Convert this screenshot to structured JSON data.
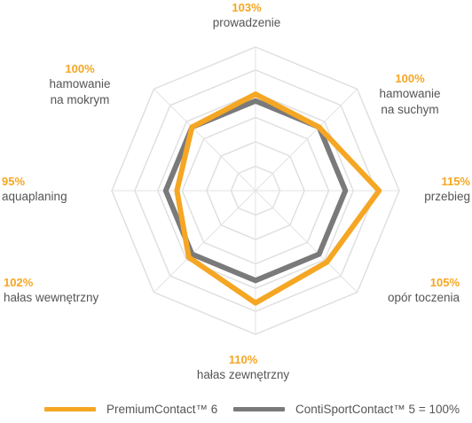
{
  "chart_data": {
    "type": "radar",
    "axes": [
      {
        "value_label": "103%",
        "label_lines": [
          "prowadzenie"
        ]
      },
      {
        "value_label": "100%",
        "label_lines": [
          "hamowanie",
          "na suchym"
        ]
      },
      {
        "value_label": "115%",
        "label_lines": [
          "przebieg"
        ]
      },
      {
        "value_label": "105%",
        "label_lines": [
          "opór toczenia"
        ]
      },
      {
        "value_label": "110%",
        "label_lines": [
          "hałas zewnętrzny"
        ]
      },
      {
        "value_label": "102%",
        "label_lines": [
          "hałas wewnętrzny"
        ]
      },
      {
        "value_label": "95%",
        "label_lines": [
          "aquaplaning"
        ]
      },
      {
        "value_label": "100%",
        "label_lines": [
          "hamowanie",
          "na mokrym"
        ]
      }
    ],
    "series": [
      {
        "name": "PremiumContact™ 6",
        "color": "#f5a623",
        "values": [
          103,
          100,
          115,
          105,
          110,
          102,
          95,
          100
        ]
      },
      {
        "name": "ContiSportContact™ 5 = 100%",
        "color": "#7a7a7a",
        "values": [
          100,
          100,
          100,
          100,
          100,
          100,
          100,
          100
        ]
      }
    ],
    "grid": true,
    "legend_position": "bottom"
  }
}
